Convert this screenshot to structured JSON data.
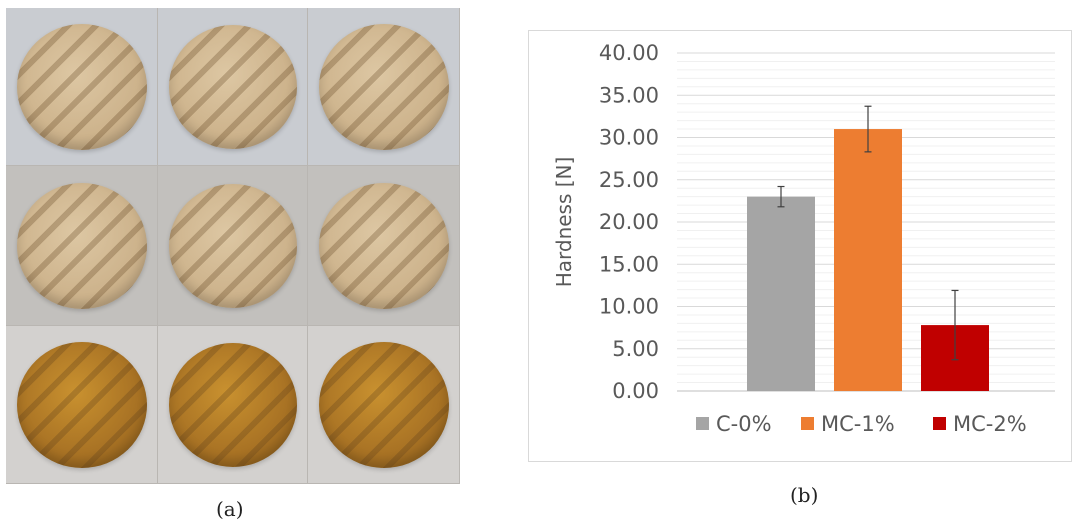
{
  "captions": {
    "a": "(a)",
    "b": "(b)"
  },
  "photo": {
    "rows": [
      {
        "cookie_style": "light",
        "count": 3
      },
      {
        "cookie_style": "light",
        "count": 3
      },
      {
        "cookie_style": "dark",
        "count": 3
      }
    ]
  },
  "chart_data": {
    "type": "bar",
    "title": "",
    "xlabel": "",
    "ylabel": "Hardness [N]",
    "ylim": [
      0,
      40
    ],
    "yticks": [
      "0.00",
      "5.00",
      "10.00",
      "15.00",
      "20.00",
      "25.00",
      "30.00",
      "35.00",
      "40.00"
    ],
    "grid": true,
    "legend_position": "bottom",
    "series": [
      {
        "name": "C-0%",
        "value": 23.0,
        "error": 1.2,
        "color": "#a5a5a5"
      },
      {
        "name": "MC-1%",
        "value": 31.0,
        "error": 2.7,
        "color": "#ed7d31"
      },
      {
        "name": "MC-2%",
        "value": 7.8,
        "error": 4.1,
        "color": "#c00000"
      }
    ]
  }
}
